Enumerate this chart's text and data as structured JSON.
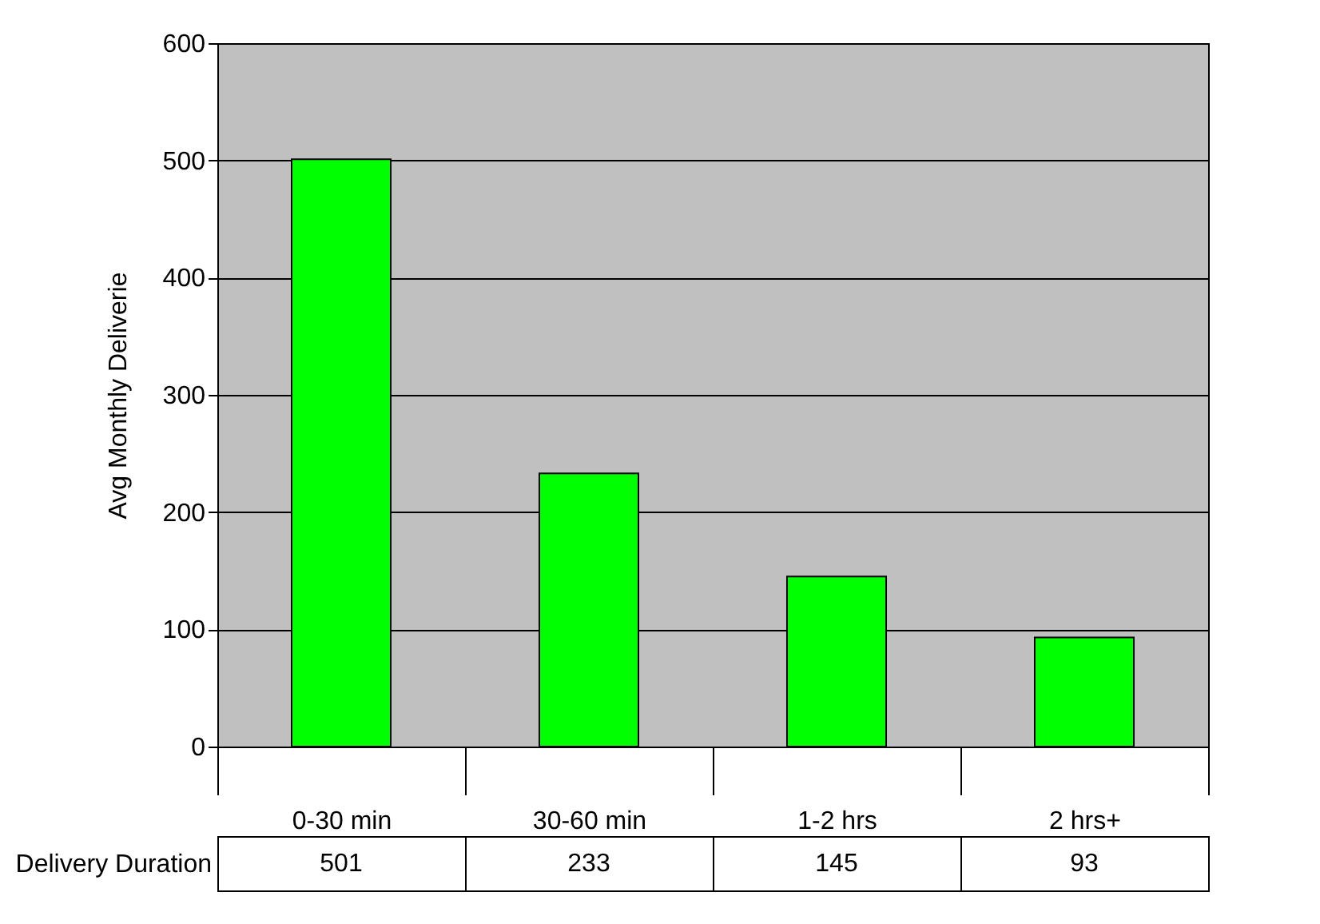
{
  "chart_data": {
    "type": "bar",
    "ylabel": "Avg Monthly Deliverie",
    "categories": [
      "0-30 min",
      "30-60 min",
      "1-2 hrs",
      "2 hrs+"
    ],
    "series": [
      {
        "name": "Delivery Duration",
        "color": "#00ff00",
        "values": [
          501,
          233,
          145,
          93
        ]
      }
    ],
    "ylim": [
      0,
      600
    ],
    "yticks": [
      0,
      100,
      200,
      300,
      400,
      500,
      600
    ],
    "grid": "y",
    "data_labels": true,
    "legend": false
  }
}
